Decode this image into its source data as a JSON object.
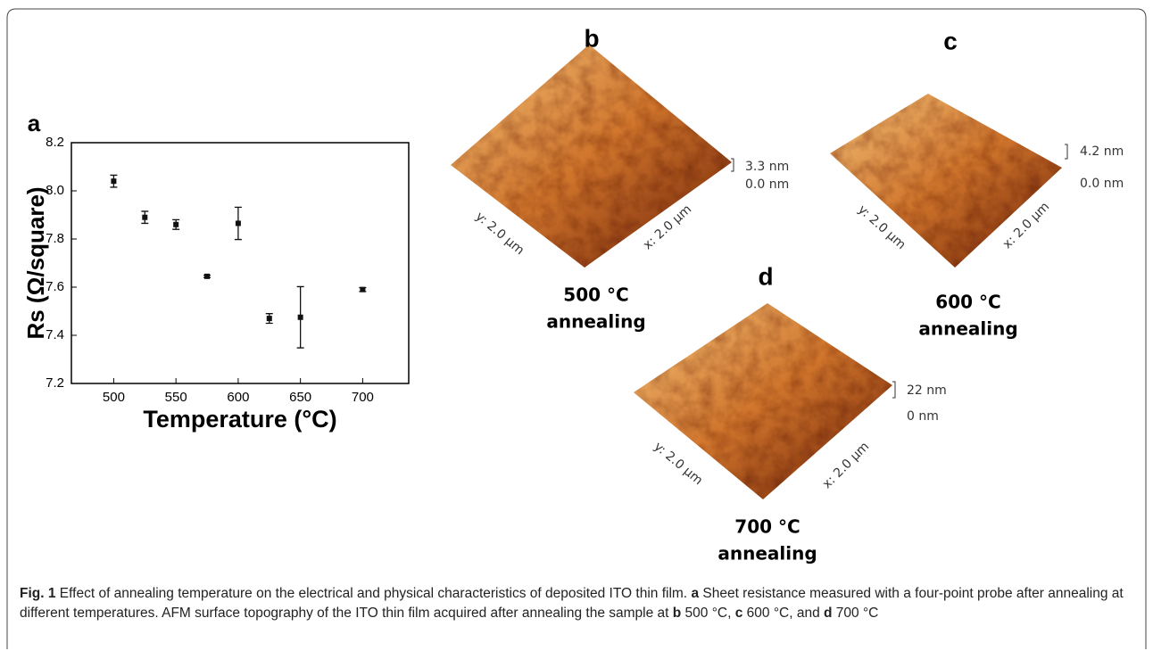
{
  "chart_data": {
    "type": "scatter",
    "panel_label": "a",
    "x_label": "Temperature (°C)",
    "y_label": "Rs (Ω/square)",
    "x": [
      500,
      525,
      550,
      575,
      600,
      625,
      650,
      700
    ],
    "values": [
      8.04,
      7.89,
      7.86,
      7.645,
      7.865,
      7.47,
      7.475,
      7.59
    ],
    "errors": [
      0.025,
      0.025,
      0.02,
      0.005,
      0.067,
      0.02,
      0.127,
      0.008
    ],
    "color": "#111111",
    "xlim": [
      466,
      737
    ],
    "xticks": [
      500,
      550,
      600,
      650,
      700
    ],
    "ylim": [
      7.2,
      8.2
    ],
    "yticks": [
      7.2,
      7.4,
      7.6,
      7.8,
      {
        "value": 8.0,
        "label": "8.0"
      },
      8.2
    ]
  },
  "afm_panels": [
    {
      "label": "b",
      "z_max": "3.3 nm",
      "z_min": "0.0 nm",
      "y_axis": "y: 2.0 µm",
      "x_axis": "x: 2.0 µm",
      "temperature": "500 °C",
      "caption": "annealing"
    },
    {
      "label": "c",
      "z_max": "4.2 nm",
      "z_min": "0.0 nm",
      "y_axis": "y: 2.0 µm",
      "x_axis": "x: 2.0 µm",
      "temperature": "600 °C",
      "caption": "annealing"
    },
    {
      "label": "d",
      "z_max": "22 nm",
      "z_min": "0 nm",
      "y_axis": "y: 2.0 µm",
      "x_axis": "x: 2.0 µm",
      "temperature": "700 °C",
      "caption": "annealing"
    }
  ],
  "caption": {
    "label": "Fig. 1",
    "text": [
      " Effect of annealing temperature on the electrical and physical characteristics of deposited ITO thin film. ",
      "a",
      " Sheet resistance measured with a four-point probe after annealing at different temperatures. AFM surface topography of the ITO thin film acquired after annealing the sample at ",
      "b",
      " 500 °C, ",
      "c",
      " 600 °C, and ",
      "d",
      " 700 °C"
    ]
  }
}
